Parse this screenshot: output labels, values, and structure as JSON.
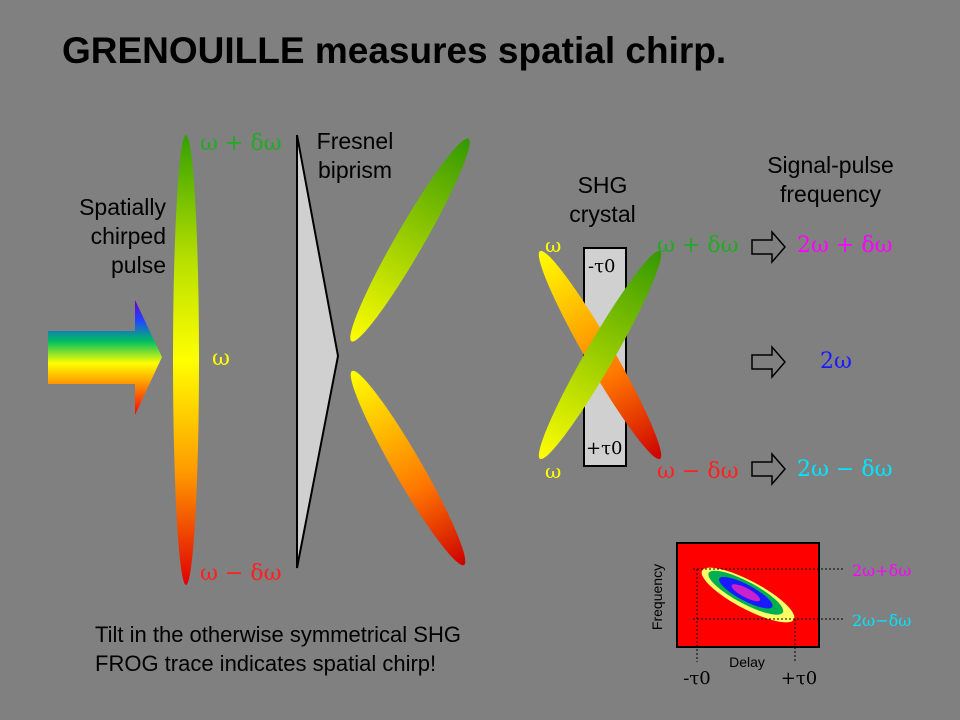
{
  "title": "GRENOUILLE measures spatial chirp.",
  "labels": {
    "spatially_chirped_1": "Spatially",
    "spatially_chirped_2": "chirped",
    "spatially_chirped_3": "pulse",
    "fresnel_1": "Fresnel",
    "fresnel_2": "biprism",
    "shg_1": "SHG",
    "shg_2": "crystal",
    "signal_1": "Signal-pulse",
    "signal_2": "frequency"
  },
  "symbols": {
    "w_plus": "ω + δω",
    "w": "ω",
    "w_minus": "ω − δω",
    "neg_tau0": "-τ0",
    "pos_tau0": "+τ0",
    "two_w_plus": "2ω + δω",
    "two_w": "2ω",
    "two_w_minus": "2ω − δω"
  },
  "caption": {
    "line1": "Tilt in the otherwise symmetrical SHG",
    "line2": "FROG trace indicates spatial chirp!"
  },
  "trace": {
    "ylabel": "Frequency",
    "xlabel": "Delay",
    "tick_neg": "-τ0",
    "tick_pos": "+τ0",
    "marker_top": "2ω+δω",
    "marker_bottom": "2ω−δω"
  },
  "colors": {
    "background": "#808080",
    "green": "#22aa22",
    "red": "#ff2020",
    "yellow": "#ffff00",
    "magenta": "#ff00ff",
    "blue": "#1a1aff",
    "cyan": "#00e5ff",
    "trace_bg": "#ff0000"
  }
}
